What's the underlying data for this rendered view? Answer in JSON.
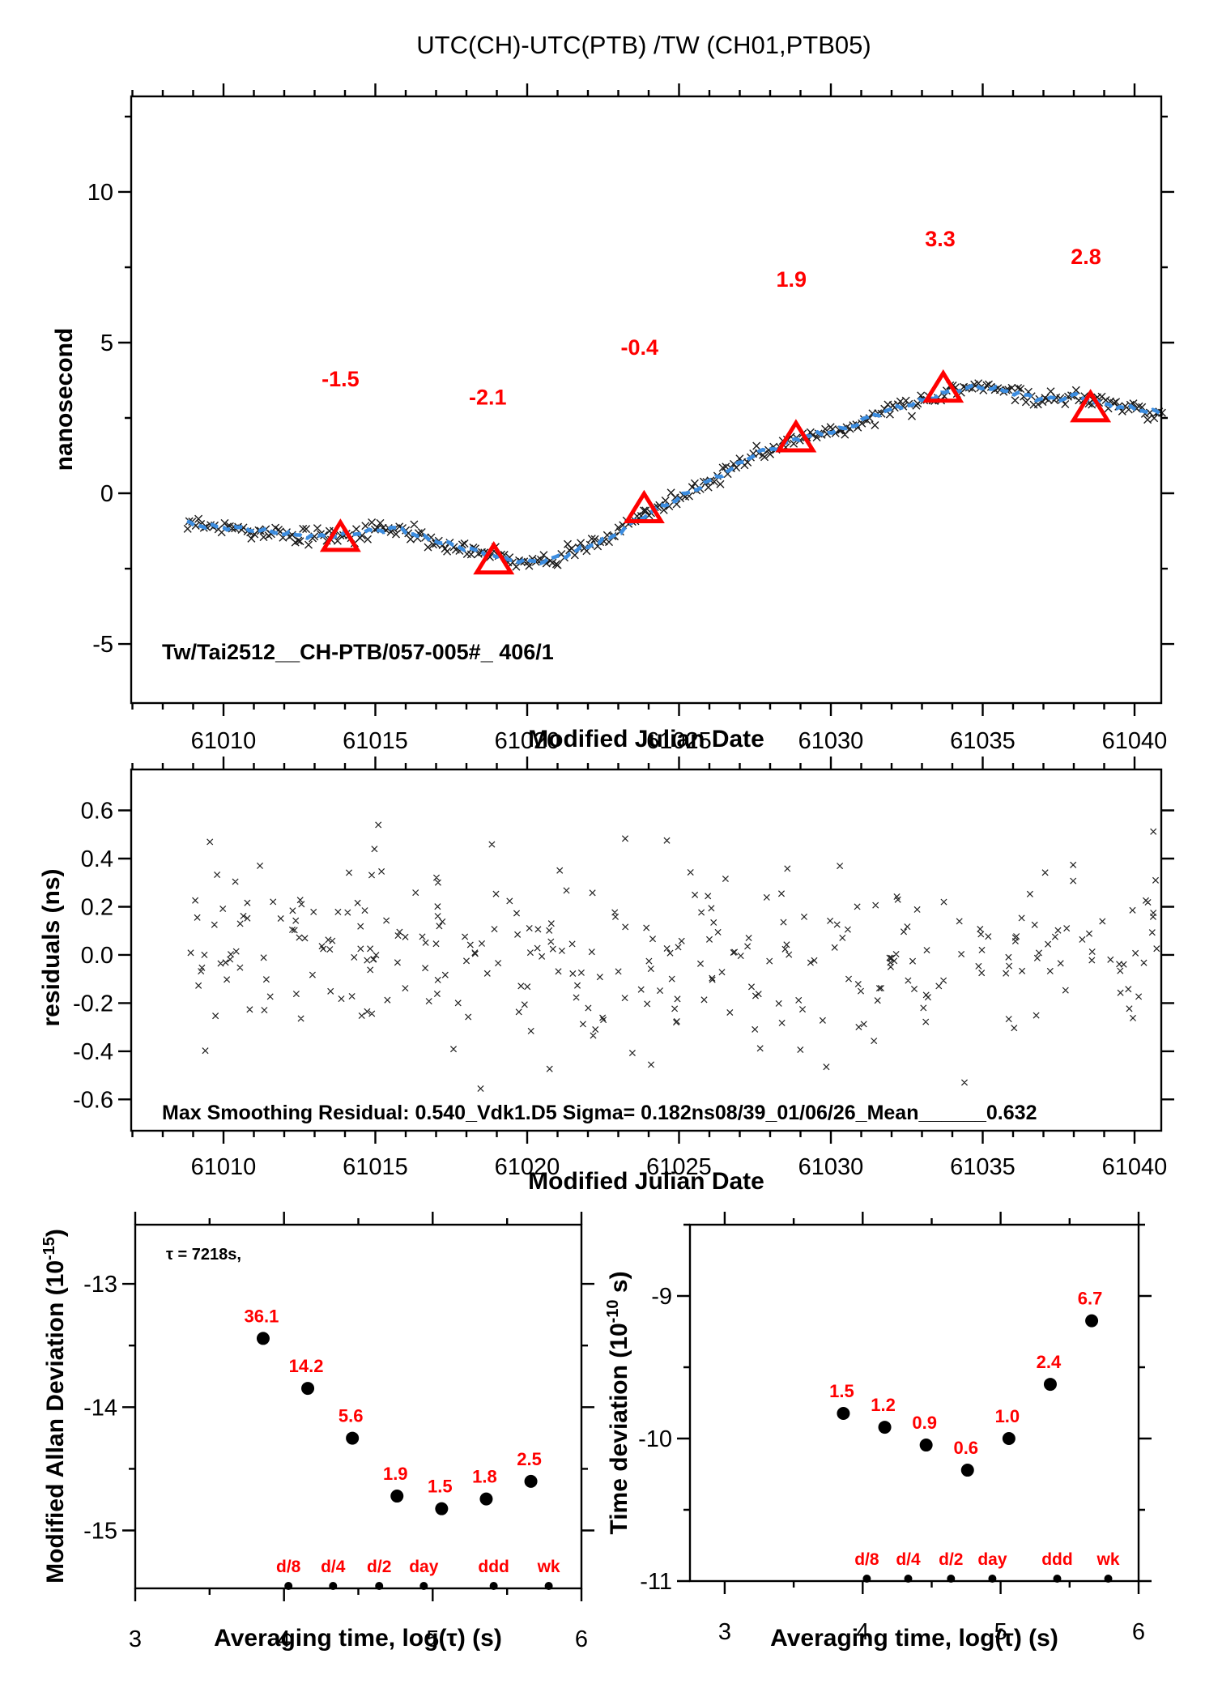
{
  "page": {
    "title": "UTC(CH)-UTC(PTB)  /TW  (CH01,PTB05)"
  },
  "chart_data": [
    {
      "id": "top",
      "type": "scatter",
      "title": "UTC(CH)-UTC(PTB)  /TW  (CH01,PTB05)",
      "xlabel": "Modified Julian Date",
      "ylabel": "nanosecond",
      "xlim": [
        61006.96,
        61040.88
      ],
      "ylim": [
        -6.96,
        13.17
      ],
      "xticks": {
        "values": [
          61010,
          61015,
          61020,
          61025,
          61030,
          61035,
          61040
        ],
        "labels": [
          "61010",
          "61015",
          "61020",
          "61025",
          "61030",
          "61035",
          "61040"
        ]
      },
      "xminor_step": 1,
      "yticks": {
        "values": [
          -5,
          0,
          5,
          10
        ],
        "labels": [
          "-5",
          "0",
          "5",
          "10"
        ]
      },
      "yminor_step": 2.5,
      "raw_marker": "x",
      "raw_color": "#1a1a1a",
      "smooth_color": "#3c8de0",
      "accent_color": "#ff0000",
      "noise_sigma": 0.13,
      "n_points": 345,
      "x_start": 61008.8,
      "x_end": 61040.9,
      "seed": 20250101,
      "trend": [
        [
          61008.8,
          -1.0
        ],
        [
          61009.5,
          -1.1
        ],
        [
          61010.5,
          -1.15
        ],
        [
          61011.5,
          -1.25
        ],
        [
          61012.5,
          -1.4
        ],
        [
          61013.5,
          -1.45
        ],
        [
          61014.2,
          -1.35
        ],
        [
          61015.0,
          -1.25
        ],
        [
          61015.7,
          -1.15
        ],
        [
          61016.5,
          -1.45
        ],
        [
          61017.5,
          -1.7
        ],
        [
          61018.3,
          -1.9
        ],
        [
          61019.0,
          -2.1
        ],
        [
          61019.8,
          -2.25
        ],
        [
          61020.5,
          -2.25
        ],
        [
          61021.3,
          -2.05
        ],
        [
          61022.0,
          -1.75
        ],
        [
          61022.8,
          -1.45
        ],
        [
          61023.5,
          -0.95
        ],
        [
          61024.2,
          -0.55
        ],
        [
          61025.0,
          -0.15
        ],
        [
          61026.0,
          0.4
        ],
        [
          61026.8,
          0.85
        ],
        [
          61027.5,
          1.3
        ],
        [
          61028.3,
          1.55
        ],
        [
          61029.0,
          1.85
        ],
        [
          61029.8,
          2.0
        ],
        [
          61030.5,
          2.15
        ],
        [
          61031.3,
          2.55
        ],
        [
          61032.0,
          2.8
        ],
        [
          61032.8,
          3.0
        ],
        [
          61033.5,
          3.25
        ],
        [
          61034.2,
          3.45
        ],
        [
          61034.8,
          3.55
        ],
        [
          61035.5,
          3.45
        ],
        [
          61036.2,
          3.3
        ],
        [
          61036.8,
          3.15
        ],
        [
          61037.5,
          3.1
        ],
        [
          61038.0,
          3.25
        ],
        [
          61038.6,
          3.05
        ],
        [
          61039.2,
          2.9
        ],
        [
          61040.0,
          2.8
        ],
        [
          61040.9,
          2.65
        ]
      ],
      "triangles": [
        [
          61013.85,
          -1.5
        ],
        [
          61018.9,
          -2.25
        ],
        [
          61023.85,
          -0.55
        ],
        [
          61028.85,
          1.8
        ],
        [
          61033.7,
          3.45
        ],
        [
          61038.55,
          2.8
        ]
      ],
      "point_labels": [
        {
          "text": "-1.5",
          "x": 61013.85,
          "y": 3.55
        },
        {
          "text": "-2.1",
          "x": 61018.7,
          "y": 2.95
        },
        {
          "text": "-0.4",
          "x": 61023.7,
          "y": 4.6
        },
        {
          "text": "1.9",
          "x": 61028.7,
          "y": 6.85
        },
        {
          "text": "3.3",
          "x": 61033.6,
          "y": 8.2
        },
        {
          "text": "2.8",
          "x": 61038.4,
          "y": 7.6
        }
      ],
      "inset_text": "Tw/Tai2512__CH-PTB/057-005#_  406/1"
    },
    {
      "id": "residuals",
      "type": "scatter",
      "xlabel": "Modified Julian Date",
      "ylabel": "residuals (ns)",
      "xlim": [
        61006.96,
        61040.88
      ],
      "ylim": [
        -0.73,
        0.77
      ],
      "xticks": {
        "values": [
          61010,
          61015,
          61020,
          61025,
          61030,
          61035,
          61040
        ],
        "labels": [
          "61010",
          "61015",
          "61020",
          "61025",
          "61030",
          "61035",
          "61040"
        ]
      },
      "xminor_step": 1,
      "yticks": {
        "values": [
          0.6,
          0.4,
          0.2,
          0.0,
          -0.2,
          -0.4,
          -0.6
        ],
        "labels": [
          "0.6",
          "0.4",
          "0.2",
          "0.0",
          "-0.2",
          "-0.4",
          "-0.6"
        ]
      },
      "marker_color": "#222222",
      "sigma": 0.182,
      "clamp": 0.555,
      "n_points": 310,
      "x_start": 61008.9,
      "x_end": 61040.9,
      "seed": 911,
      "forced_points": [
        [
          61015.1,
          0.54
        ],
        [
          61024.6,
          0.475
        ],
        [
          61011.2,
          0.37
        ],
        [
          61034.4,
          -0.53
        ]
      ],
      "stats_text": "Max Smoothing Residual: 0.540_Vdk1.D5  Sigma= 0.182ns08/39_01/06/26_Mean______0.632"
    },
    {
      "id": "mdev",
      "type": "scatter",
      "xlabel": "Averaging time, log(τ) (s)",
      "ylabel_pre": "Modified Allan Deviation (10",
      "ylabel_sup": "-15",
      "ylabel_post": ")",
      "xlim": [
        3,
        6
      ],
      "ylim": [
        -15.47,
        -12.52
      ],
      "xticks": {
        "values": [
          3,
          4,
          5,
          6
        ],
        "labels": [
          "3",
          "4",
          "5",
          "6"
        ]
      },
      "xminor_step": 0.5,
      "yticks": {
        "values": [
          -13,
          -14,
          -15
        ],
        "labels": [
          "-13",
          "-14",
          "-15"
        ]
      },
      "yminor_step": 0.5,
      "exp": -15,
      "tau_text": "τ = 7218s,",
      "point_color": "#000000",
      "label_color": "#ff0000",
      "points": [
        {
          "x": 3.86,
          "value": 36.1,
          "label": "36.1"
        },
        {
          "x": 4.16,
          "value": 14.2,
          "label": "14.2"
        },
        {
          "x": 4.46,
          "value": 5.6,
          "label": "5.6"
        },
        {
          "x": 4.76,
          "value": 1.9,
          "label": "1.9"
        },
        {
          "x": 5.06,
          "value": 1.5,
          "label": "1.5"
        },
        {
          "x": 5.36,
          "value": 1.8,
          "label": "1.8"
        },
        {
          "x": 5.66,
          "value": 2.5,
          "label": "2.5"
        }
      ],
      "time_markers": [
        {
          "label": "d/8",
          "x": 4.03
        },
        {
          "label": "d/4",
          "x": 4.33
        },
        {
          "label": "d/2",
          "x": 4.64
        },
        {
          "label": "day",
          "x": 4.94
        },
        {
          "label": "ddd",
          "x": 5.41
        },
        {
          "label": "wk",
          "x": 5.78
        }
      ]
    },
    {
      "id": "tdev",
      "type": "scatter",
      "xlabel": "Averaging time, log(τ) (s)",
      "ylabel_pre": "Time deviation (10",
      "ylabel_sup": "-10",
      "ylabel_post": " s)",
      "xlim": [
        2.748,
        6.0
      ],
      "ylim": [
        -11,
        -8.5
      ],
      "xticks": {
        "values": [
          3,
          4,
          5,
          6
        ],
        "labels": [
          "3",
          "4",
          "5",
          "6"
        ]
      },
      "xminor_step": 0.5,
      "yticks": {
        "values": [
          -9,
          -10,
          -11
        ],
        "labels": [
          "-9",
          "-10",
          "-11"
        ]
      },
      "yminor_step": 0.5,
      "exp": -10,
      "point_color": "#000000",
      "label_color": "#ff0000",
      "points": [
        {
          "x": 3.86,
          "value": 1.5,
          "label": "1.5"
        },
        {
          "x": 4.16,
          "value": 1.2,
          "label": "1.2"
        },
        {
          "x": 4.46,
          "value": 0.9,
          "label": "0.9"
        },
        {
          "x": 4.76,
          "value": 0.6,
          "label": "0.6"
        },
        {
          "x": 5.06,
          "value": 1.0,
          "label": "1.0"
        },
        {
          "x": 5.36,
          "value": 2.4,
          "label": "2.4"
        },
        {
          "x": 5.66,
          "value": 6.7,
          "label": "6.7"
        }
      ],
      "time_markers": [
        {
          "label": "d/8",
          "x": 4.03
        },
        {
          "label": "d/4",
          "x": 4.33
        },
        {
          "label": "d/2",
          "x": 4.64
        },
        {
          "label": "day",
          "x": 4.94
        },
        {
          "label": "ddd",
          "x": 5.41
        },
        {
          "label": "wk",
          "x": 5.78
        }
      ]
    }
  ]
}
